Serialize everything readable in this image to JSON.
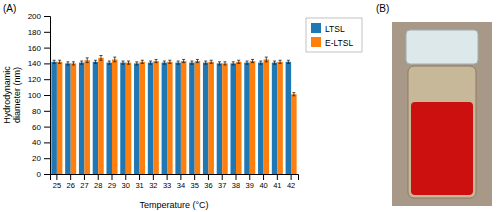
{
  "chart_data": {
    "type": "bar",
    "xlabel": "Temperature (°C)",
    "ylabel": "Hydrodynamic\ndiameter (nm)",
    "categories": [
      25,
      26,
      27,
      28,
      29,
      30,
      31,
      32,
      33,
      34,
      35,
      36,
      37,
      38,
      39,
      40,
      41,
      42
    ],
    "series": [
      {
        "name": "LTSL",
        "values": [
          142,
          140,
          141,
          142,
          141,
          141,
          140,
          141,
          141,
          141,
          141,
          141,
          140,
          140,
          141,
          141,
          141,
          142
        ],
        "errors": [
          2,
          2,
          2,
          2,
          2,
          2,
          2,
          2,
          2,
          2,
          2,
          2,
          2,
          2,
          2,
          2,
          2,
          2
        ]
      },
      {
        "name": "E-LTSL",
        "values": [
          142,
          140,
          144,
          147,
          145,
          141,
          142,
          143,
          142,
          143,
          143,
          142,
          140,
          142,
          143,
          145,
          142,
          101
        ],
        "errors": [
          2,
          2,
          3,
          3,
          3,
          2,
          2,
          2,
          2,
          2,
          2,
          2,
          2,
          2,
          2,
          3,
          2,
          2
        ]
      }
    ],
    "ylim": [
      0,
      200
    ],
    "yticks": [
      0,
      20,
      40,
      60,
      80,
      100,
      120,
      140,
      160,
      180,
      200
    ],
    "grid": false,
    "legend": "upper right",
    "annotations": [
      "(A)",
      "(B)"
    ]
  }
}
